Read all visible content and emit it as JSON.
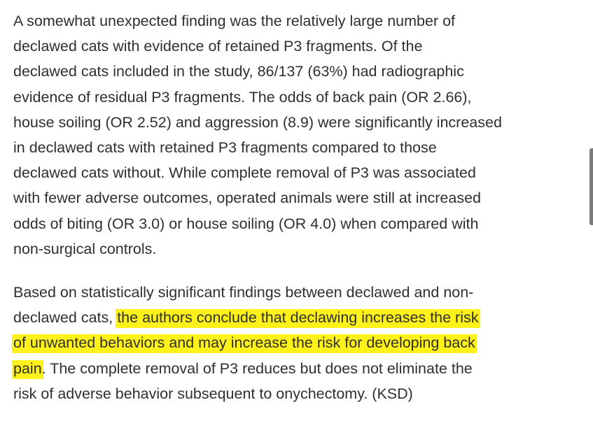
{
  "article": {
    "paragraph1": "A somewhat unexpected finding was the relatively large number of\ndeclawed cats with evidence of retained P3 fragments.  Of the\ndeclawed cats included in the study, 86/137 (63%) had radiographic\nevidence of residual P3 fragments.  The odds of back pain (OR 2.66),\nhouse soiling (OR 2.52) and aggression (8.9) were significantly increased\nin declawed cats with retained P3 fragments compared to those\ndeclawed cats without.  While complete removal of P3 was associated\nwith fewer adverse outcomes, operated animals were still at increased\nodds of biting (OR 3.0) or house soiling (OR 4.0) when compared with\nnon-surgical controls.",
    "paragraph2_before": "Based on statistically significant findings between declawed and non-\ndeclawed cats, ",
    "paragraph2_highlight": "the authors conclude that declawing increases the risk\nof unwanted behaviors and may increase the risk for developing back\npain",
    "paragraph2_after": ".  The complete removal of P3 reduces but does not eliminate the\nrisk of adverse behavior subsequent to onychectomy. (KSD)"
  },
  "colors": {
    "text": "#2f2f2f",
    "highlight": "#fff21a",
    "background": "#ffffff",
    "scrollbar": "#7a7a7a"
  }
}
